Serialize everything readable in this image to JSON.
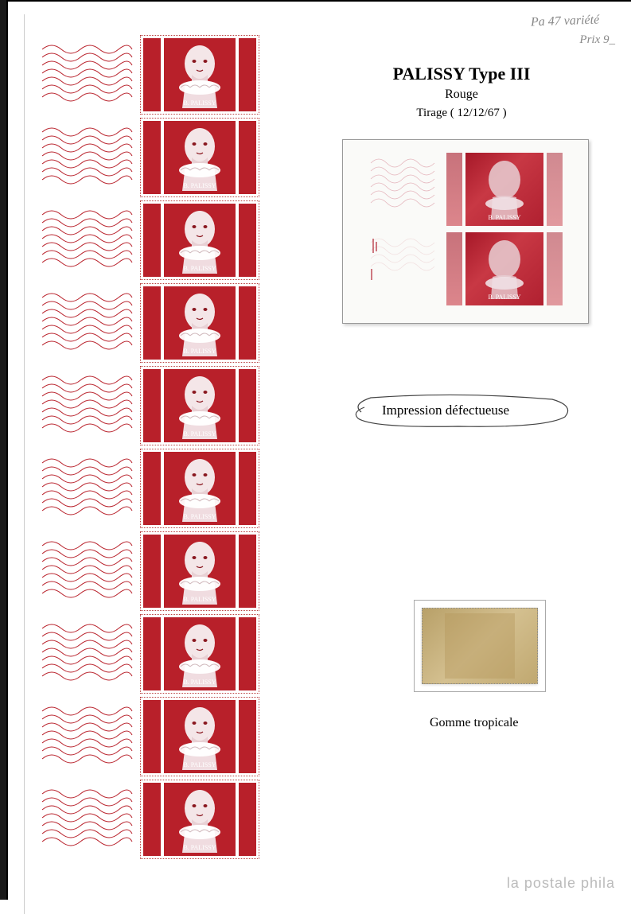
{
  "handwriting": {
    "line1": "Pa 47 variété",
    "line2": "Prix 9_"
  },
  "title": {
    "main": "PALISSY Type III",
    "color": "Rouge",
    "tirage": "Tirage ( 12/12/67 )"
  },
  "stamp": {
    "caption": "B. PALISSY",
    "red_color": "#b8202a",
    "strip_count": 10
  },
  "labels": {
    "impression": "Impression défectueuse",
    "gomme": "Gomme tropicale"
  },
  "watermark": "la postale phila",
  "colors": {
    "stamp_red": "#b8202a",
    "defect_red": "#a61828",
    "tropical": "#c0a870",
    "border": "#999999"
  }
}
